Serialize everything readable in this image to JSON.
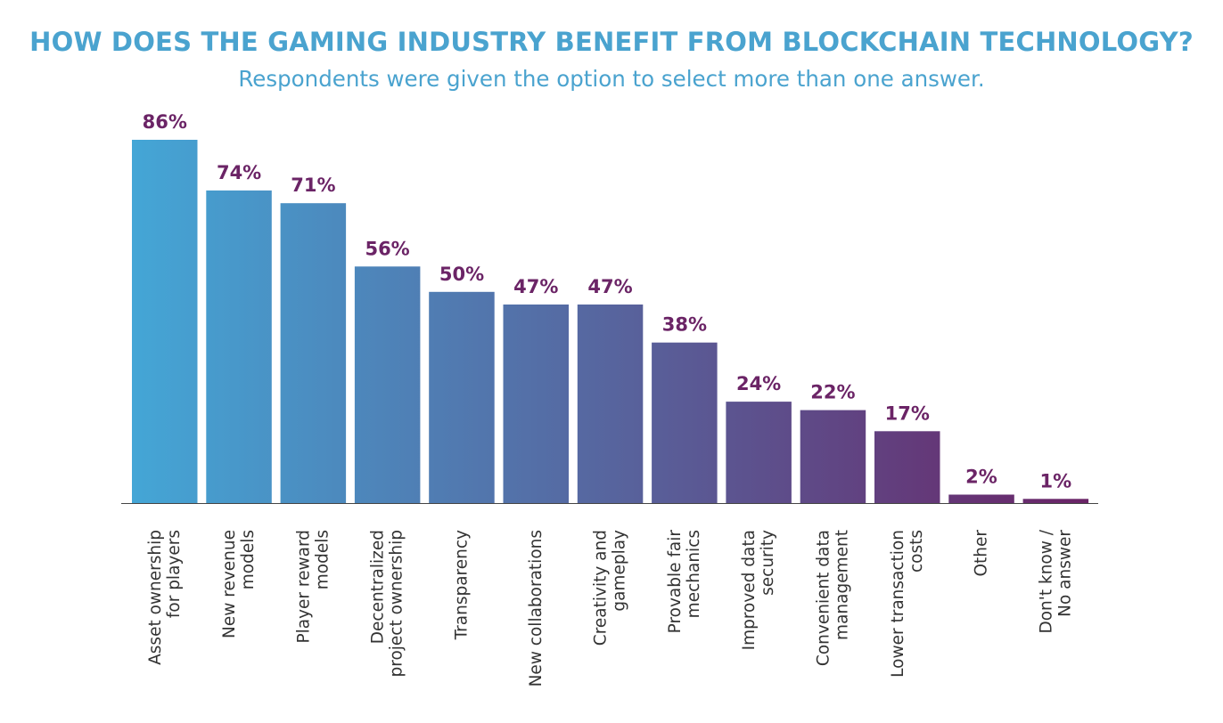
{
  "title": "HOW DOES THE GAMING INDUSTRY BENEFIT FROM BLOCKCHAIN TECHNOLOGY?",
  "subtitle": "Respondents were given the option to select more than one answer.",
  "colors": {
    "title": "#4aa3cf",
    "subtitle": "#4aa3cf",
    "value_labels": "#6b2466",
    "category_labels": "#333333",
    "baseline": "#444444",
    "gradient_start": "#44a6d6",
    "gradient_end": "#6a2366"
  },
  "chart_data": {
    "type": "bar",
    "categories": [
      [
        "Asset ownership",
        "for players"
      ],
      [
        "New revenue",
        "models"
      ],
      [
        "Player reward",
        "models"
      ],
      [
        "Decentralized",
        "project ownership"
      ],
      [
        "Transparency"
      ],
      [
        "New collaborations"
      ],
      [
        "Creativity and",
        "gameplay"
      ],
      [
        "Provable fair",
        "mechanics"
      ],
      [
        "Improved data",
        "security"
      ],
      [
        "Convenient data",
        "management"
      ],
      [
        "Lower transaction",
        "costs"
      ],
      [
        "Other"
      ],
      [
        "Don't know /",
        "No answer"
      ]
    ],
    "values": [
      86,
      74,
      71,
      56,
      50,
      47,
      47,
      38,
      24,
      22,
      17,
      2,
      1
    ],
    "value_labels": [
      "86%",
      "74%",
      "71%",
      "56%",
      "50%",
      "47%",
      "47%",
      "38%",
      "24%",
      "22%",
      "17%",
      "2%",
      "1%"
    ],
    "unit": "%",
    "ylim": [
      0,
      86
    ],
    "grid": false,
    "legend": "none",
    "xlabel": "",
    "ylabel": ""
  }
}
